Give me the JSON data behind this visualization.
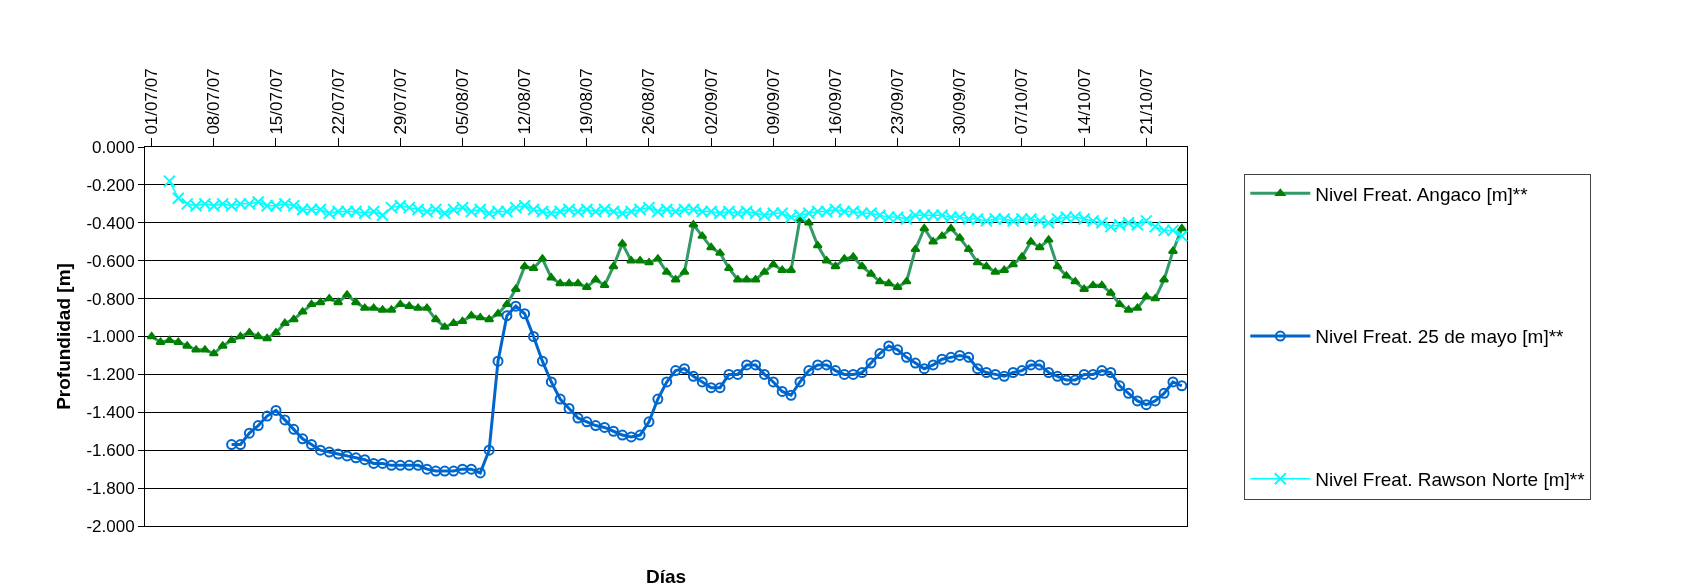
{
  "chart_data": {
    "type": "line",
    "xlabel": "Días",
    "ylabel": "Profundidad [m]",
    "x": [
      "--07-01",
      "--07-02",
      "--07-03",
      "--07-04",
      "--07-05",
      "--07-06",
      "--07-07",
      "--07-08",
      "--07-09",
      "--07-10",
      "--07-11",
      "--07-12",
      "--07-13",
      "--07-14",
      "--07-15",
      "--07-16",
      "--07-17",
      "--07-18",
      "--07-19",
      "--07-20",
      "--07-21",
      "--07-22",
      "--07-23",
      "--07-24",
      "--07-25",
      "--07-26",
      "--07-27",
      "--07-28",
      "--07-29",
      "--07-30",
      "--07-31",
      "--08-01",
      "--08-02",
      "--08-03",
      "--08-04",
      "--08-05",
      "--08-06",
      "--08-07",
      "--08-08",
      "--08-09",
      "--08-10",
      "--08-11",
      "--08-12",
      "--08-13",
      "--08-14",
      "--08-15",
      "--08-16",
      "--08-17",
      "--08-18",
      "--08-19",
      "--08-20",
      "--08-21",
      "--08-22",
      "--08-23",
      "--08-24",
      "--08-25",
      "--08-26",
      "--08-27",
      "--08-28",
      "--08-29",
      "--08-30",
      "--08-31",
      "--09-01",
      "--09-02",
      "--09-03",
      "--09-04",
      "--09-05",
      "--09-06",
      "--09-07",
      "--09-08",
      "--09-09",
      "--09-10",
      "--09-11",
      "--09-12",
      "--09-13",
      "--09-14",
      "--09-15",
      "--09-16",
      "--09-17",
      "--09-18",
      "--09-19",
      "--09-20",
      "--09-21",
      "--09-22",
      "--09-23",
      "--09-24",
      "--09-25",
      "--09-26",
      "--09-27",
      "--09-28",
      "--09-29",
      "--09-30",
      "--10-01",
      "--10-02",
      "--10-03",
      "--10-04",
      "--10-05",
      "--10-06",
      "--10-07",
      "--10-08",
      "--10-09",
      "--10-10",
      "--10-11",
      "--10-12",
      "--10-13",
      "--10-14",
      "--10-15",
      "--10-16",
      "--10-17",
      "--10-18",
      "--10-19",
      "--10-20",
      "--10-21",
      "--10-22",
      "--10-23",
      "--10-24",
      "--10-25"
    ],
    "series": [
      {
        "name": "Nivel Freat. Angaco [m]**",
        "color": "#339966",
        "marker": "triangle",
        "values": [
          -1.0,
          -1.03,
          -1.02,
          -1.03,
          -1.05,
          -1.07,
          -1.07,
          -1.09,
          -1.05,
          -1.02,
          -1.0,
          -0.98,
          -1.0,
          -1.01,
          -0.98,
          -0.93,
          -0.91,
          -0.87,
          -0.83,
          -0.82,
          -0.8,
          -0.82,
          -0.78,
          -0.82,
          -0.85,
          -0.85,
          -0.86,
          -0.86,
          -0.83,
          -0.84,
          -0.85,
          -0.85,
          -0.91,
          -0.95,
          -0.93,
          -0.92,
          -0.89,
          -0.9,
          -0.91,
          -0.88,
          -0.83,
          -0.75,
          -0.63,
          -0.64,
          -0.59,
          -0.69,
          -0.72,
          -0.72,
          -0.72,
          -0.74,
          -0.7,
          -0.73,
          -0.63,
          -0.51,
          -0.6,
          -0.6,
          -0.61,
          -0.59,
          -0.66,
          -0.7,
          -0.66,
          -0.41,
          -0.47,
          -0.53,
          -0.56,
          -0.64,
          -0.7,
          -0.7,
          -0.7,
          -0.66,
          -0.62,
          -0.65,
          -0.65,
          -0.38,
          -0.4,
          -0.52,
          -0.6,
          -0.63,
          -0.59,
          -0.58,
          -0.63,
          -0.67,
          -0.71,
          -0.72,
          -0.74,
          -0.71,
          -0.54,
          -0.43,
          -0.5,
          -0.47,
          -0.43,
          -0.48,
          -0.54,
          -0.61,
          -0.63,
          -0.66,
          -0.65,
          -0.62,
          -0.58,
          -0.5,
          -0.53,
          -0.49,
          -0.63,
          -0.68,
          -0.71,
          -0.75,
          -0.73,
          -0.73,
          -0.77,
          -0.83,
          -0.86,
          -0.85,
          -0.79,
          -0.8,
          -0.7,
          -0.55,
          -0.43
        ]
      },
      {
        "name": "Nivel Freat. 25 de mayo [m]**",
        "color": "#0066cc",
        "marker": "circle",
        "values": [
          null,
          null,
          null,
          null,
          null,
          null,
          null,
          null,
          null,
          -1.57,
          -1.57,
          -1.51,
          -1.47,
          -1.42,
          -1.39,
          -1.44,
          -1.49,
          -1.54,
          -1.57,
          -1.6,
          -1.61,
          -1.62,
          -1.63,
          -1.64,
          -1.65,
          -1.67,
          -1.67,
          -1.68,
          -1.68,
          -1.68,
          -1.68,
          -1.7,
          -1.71,
          -1.71,
          -1.71,
          -1.7,
          -1.7,
          -1.72,
          -1.6,
          -1.13,
          -0.89,
          -0.84,
          -0.88,
          -1.0,
          -1.13,
          -1.24,
          -1.33,
          -1.38,
          -1.43,
          -1.45,
          -1.47,
          -1.48,
          -1.5,
          -1.52,
          -1.53,
          -1.52,
          -1.45,
          -1.33,
          -1.24,
          -1.18,
          -1.17,
          -1.21,
          -1.24,
          -1.27,
          -1.27,
          -1.2,
          -1.2,
          -1.15,
          -1.15,
          -1.2,
          -1.24,
          -1.29,
          -1.31,
          -1.24,
          -1.18,
          -1.15,
          -1.15,
          -1.18,
          -1.2,
          -1.2,
          -1.19,
          -1.14,
          -1.09,
          -1.05,
          -1.07,
          -1.11,
          -1.14,
          -1.17,
          -1.15,
          -1.12,
          -1.11,
          -1.1,
          -1.11,
          -1.17,
          -1.19,
          -1.2,
          -1.21,
          -1.19,
          -1.18,
          -1.15,
          -1.15,
          -1.19,
          -1.21,
          -1.23,
          -1.23,
          -1.2,
          -1.2,
          -1.18,
          -1.19,
          -1.26,
          -1.3,
          -1.34,
          -1.36,
          -1.34,
          -1.3,
          -1.24,
          -1.26
        ]
      },
      {
        "name": "Nivel Freat. Rawson Norte [m]**",
        "color": "#00ffff",
        "marker": "cross",
        "values": [
          null,
          null,
          -0.18,
          -0.27,
          -0.3,
          -0.31,
          -0.3,
          -0.31,
          -0.3,
          -0.31,
          -0.3,
          -0.3,
          -0.29,
          -0.31,
          -0.31,
          -0.3,
          -0.31,
          -0.33,
          -0.33,
          -0.33,
          -0.35,
          -0.34,
          -0.34,
          -0.34,
          -0.35,
          -0.34,
          -0.36,
          -0.32,
          -0.31,
          -0.32,
          -0.33,
          -0.34,
          -0.33,
          -0.35,
          -0.33,
          -0.32,
          -0.34,
          -0.33,
          -0.35,
          -0.34,
          -0.34,
          -0.32,
          -0.31,
          -0.33,
          -0.34,
          -0.35,
          -0.34,
          -0.33,
          -0.34,
          -0.33,
          -0.34,
          -0.33,
          -0.34,
          -0.35,
          -0.34,
          -0.33,
          -0.32,
          -0.34,
          -0.33,
          -0.34,
          -0.33,
          -0.33,
          -0.34,
          -0.34,
          -0.35,
          -0.34,
          -0.35,
          -0.34,
          -0.35,
          -0.36,
          -0.35,
          -0.35,
          -0.37,
          -0.36,
          -0.35,
          -0.34,
          -0.34,
          -0.33,
          -0.34,
          -0.34,
          -0.35,
          -0.35,
          -0.36,
          -0.37,
          -0.37,
          -0.38,
          -0.36,
          -0.36,
          -0.36,
          -0.36,
          -0.37,
          -0.37,
          -0.38,
          -0.38,
          -0.39,
          -0.38,
          -0.38,
          -0.39,
          -0.38,
          -0.38,
          -0.39,
          -0.4,
          -0.38,
          -0.37,
          -0.37,
          -0.38,
          -0.39,
          -0.4,
          -0.42,
          -0.41,
          -0.4,
          -0.41,
          -0.39,
          -0.42,
          -0.44,
          -0.44,
          -0.47
        ]
      }
    ],
    "xlim": [
      "--06-30T06:00",
      "--10-25T14:00"
    ],
    "xticks": [
      {
        "value": "--07-01",
        "label": "01/07/07"
      },
      {
        "value": "--07-08",
        "label": "08/07/07"
      },
      {
        "value": "--07-15",
        "label": "15/07/07"
      },
      {
        "value": "--07-22",
        "label": "22/07/07"
      },
      {
        "value": "--07-29",
        "label": "29/07/07"
      },
      {
        "value": "--08-05",
        "label": "05/08/07"
      },
      {
        "value": "--08-12",
        "label": "12/08/07"
      },
      {
        "value": "--08-19",
        "label": "19/08/07"
      },
      {
        "value": "--08-26",
        "label": "26/08/07"
      },
      {
        "value": "--09-02",
        "label": "02/09/07"
      },
      {
        "value": "--09-09",
        "label": "09/09/07"
      },
      {
        "value": "--09-16",
        "label": "16/09/07"
      },
      {
        "value": "--09-23",
        "label": "23/09/07"
      },
      {
        "value": "--09-30",
        "label": "30/09/07"
      },
      {
        "value": "--10-07",
        "label": "07/10/07"
      },
      {
        "value": "--10-14",
        "label": "14/10/07"
      },
      {
        "value": "--10-21",
        "label": "21/10/07"
      }
    ],
    "ylim": [
      -2,
      0
    ],
    "yticks": [
      {
        "value": 0,
        "label": "0.000"
      },
      {
        "value": -0.2,
        "label": "-0.200"
      },
      {
        "value": -0.4,
        "label": "-0.400"
      },
      {
        "value": -0.6,
        "label": "-0.600"
      },
      {
        "value": -0.8,
        "label": "-0.800"
      },
      {
        "value": -1,
        "label": "-1.000"
      },
      {
        "value": -1.2,
        "label": "-1.200"
      },
      {
        "value": -1.4,
        "label": "-1.400"
      },
      {
        "value": -1.6,
        "label": "-1.600"
      },
      {
        "value": -1.8,
        "label": "-1.800"
      },
      {
        "value": -2,
        "label": "-2.000"
      }
    ],
    "grid": "y",
    "legend": "right",
    "line_style": "solid"
  }
}
